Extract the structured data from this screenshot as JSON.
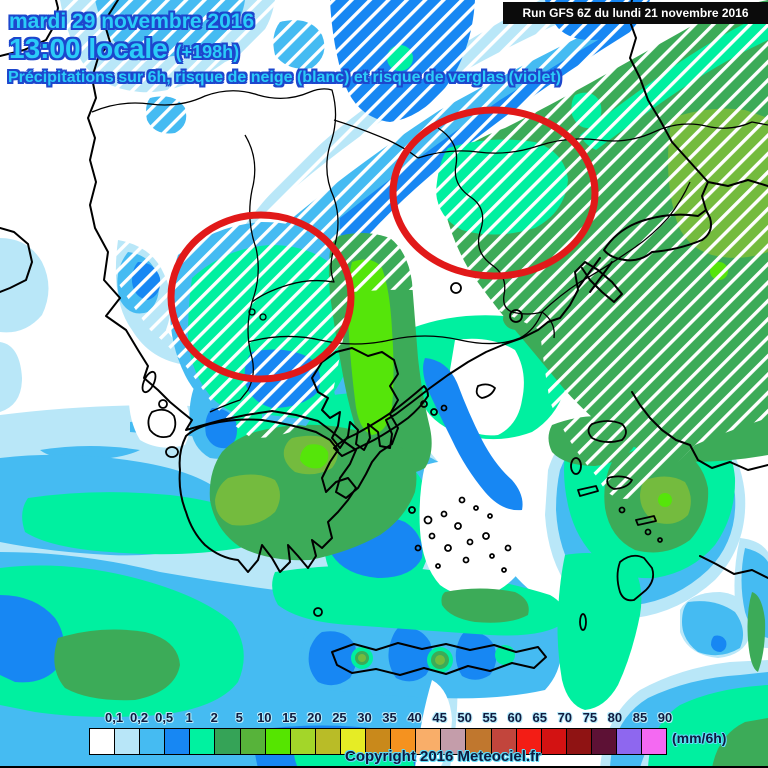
{
  "header": {
    "date": "mardi 29 novembre 2016",
    "time": "13:00 locale",
    "run_offset": "(+198h)",
    "subtitle": "Précipitations sur 6h, risque de neige (blanc) et risque de verglas (violet)"
  },
  "run_banner": {
    "text": "Run GFS 6Z du lundi 21 novembre 2016"
  },
  "footer": {
    "copyright": "Copyright 2016 Meteociel.fr"
  },
  "legend": {
    "unit": "(mm/6h)",
    "labels": [
      "0,1",
      "0,2",
      "0,5",
      "1",
      "2",
      "5",
      "10",
      "15",
      "20",
      "25",
      "30",
      "35",
      "40",
      "45",
      "50",
      "55",
      "60",
      "65",
      "70",
      "75",
      "80",
      "85",
      "90"
    ],
    "colors": [
      "#ffffff",
      "#b8e6f8",
      "#45bbf2",
      "#1787f3",
      "#00f2a0",
      "#35a357",
      "#57b33a",
      "#55e500",
      "#a3d629",
      "#b9bc27",
      "#e6ec25",
      "#c9891b",
      "#f5921f",
      "#f9ae69",
      "#c49daa",
      "#c0772e",
      "#c2453c",
      "#f31d15",
      "#d31212",
      "#8f1313",
      "#5d1135",
      "#8e67ef",
      "#f469f2"
    ]
  },
  "map": {
    "palette": {
      "pale": "#b9e7f8",
      "sky": "#45bbf2",
      "royal": "#1787f3",
      "teal": "#00f0a0",
      "green": "#3cab58",
      "green_light": "#74bb3e",
      "green_bright": "#55e50a",
      "white": "#ffffff",
      "snow_hatch": "#ffffff",
      "line": "#000000",
      "highlight": "#e11919"
    },
    "annotations": {
      "highlight_circle_count": 2,
      "highlight_color": "#e11919"
    }
  }
}
